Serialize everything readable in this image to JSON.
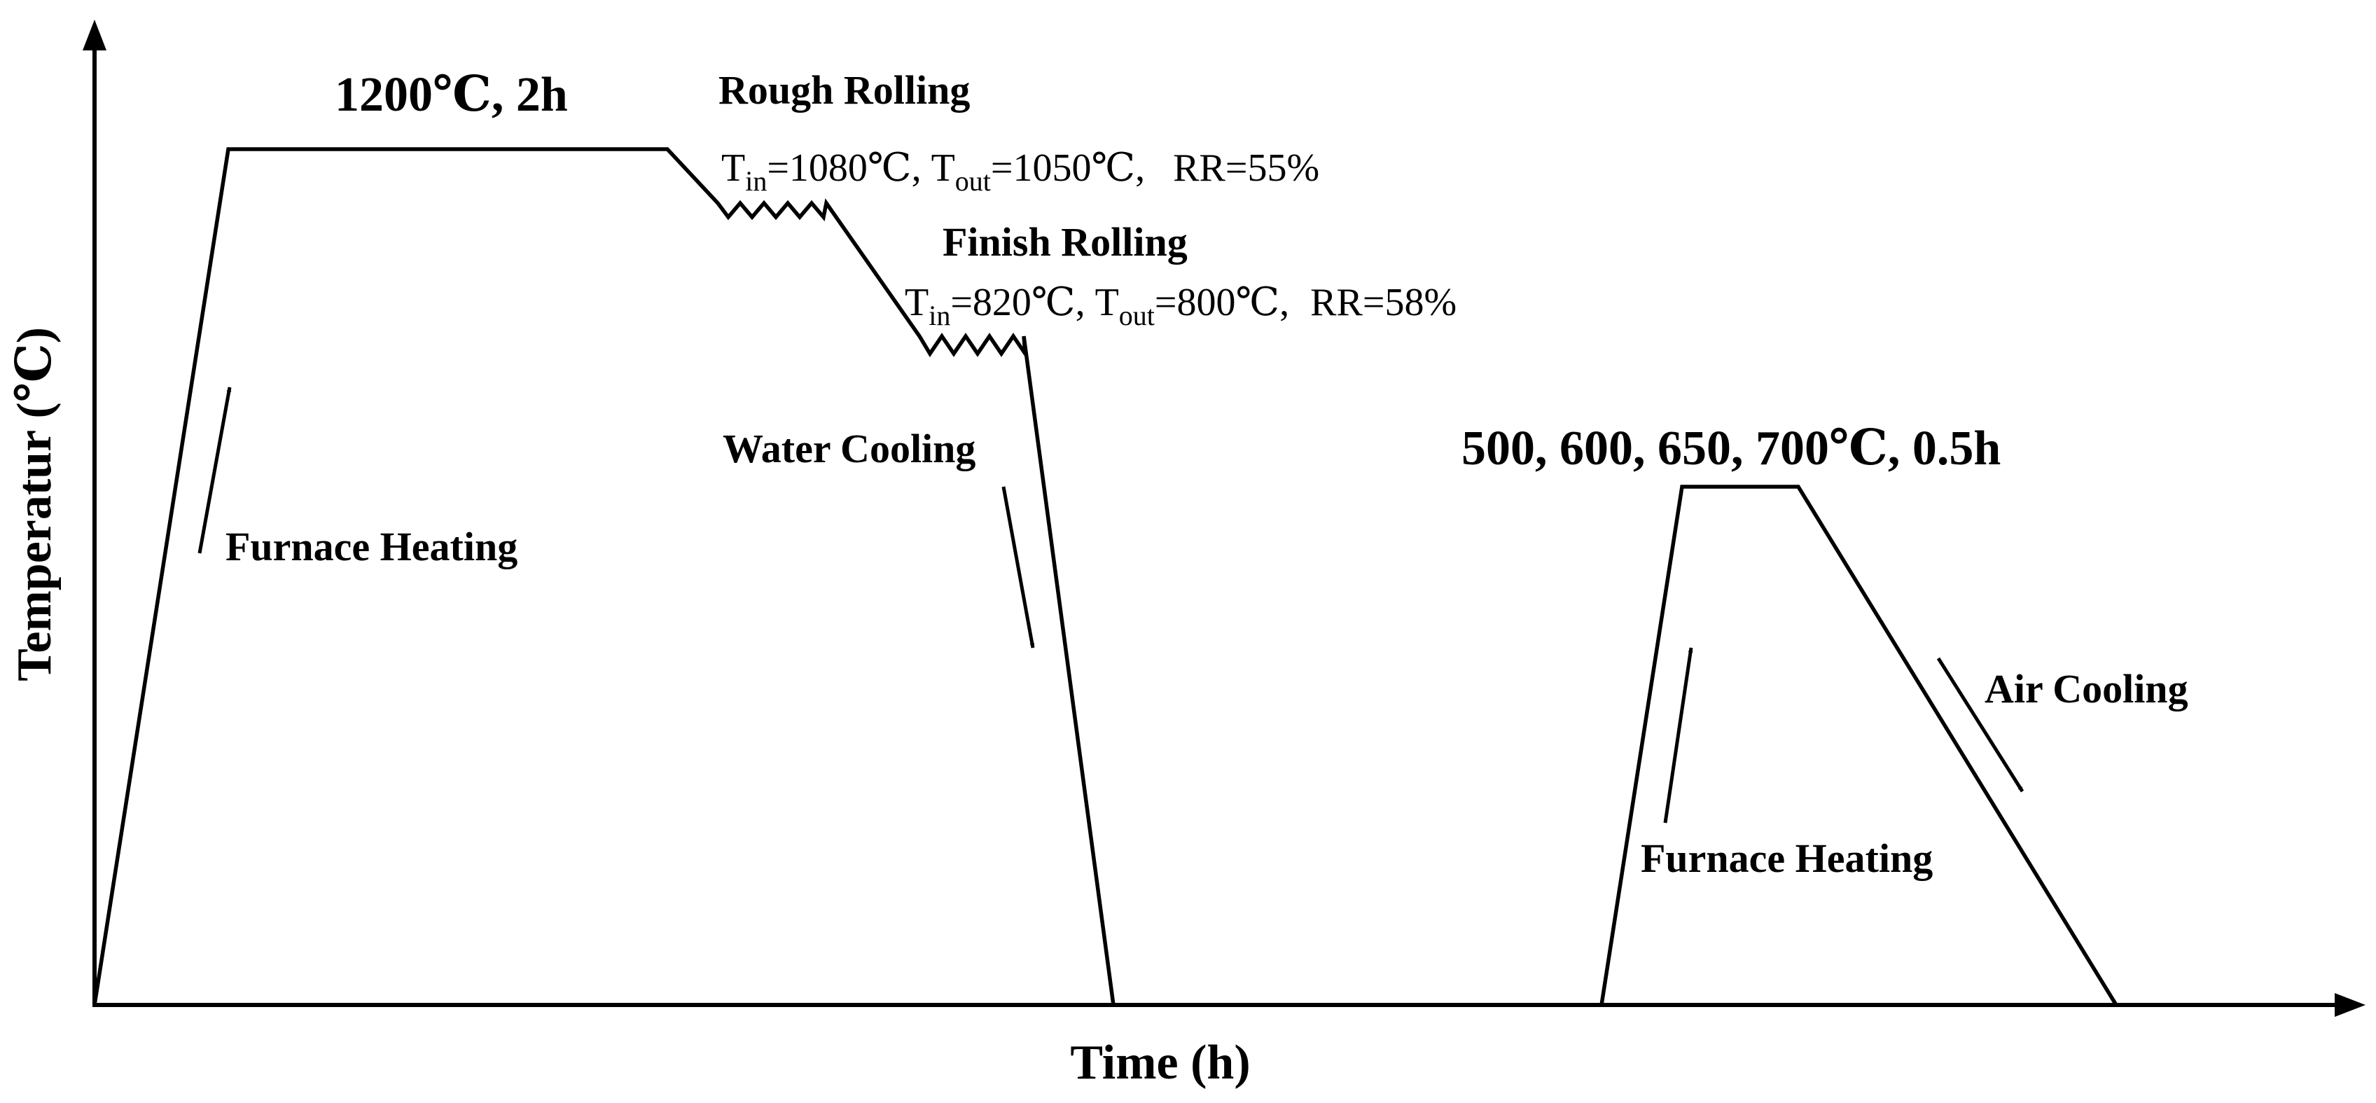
{
  "axes": {
    "x_label": "Time (h)",
    "y_label": "Temperatur (℃)"
  },
  "stages": {
    "soak_label": "1200℃, 2h",
    "rough_rolling": {
      "title": "Rough Rolling",
      "t_in_sym": "T",
      "t_in_sub": "in",
      "t_in_val": "=1080℃,",
      "t_out_sym": "T",
      "t_out_sub": "out",
      "t_out_val": "=1050℃,",
      "rr": "RR=55%"
    },
    "finish_rolling": {
      "title": "Finish Rolling",
      "t_in_sym": "T",
      "t_in_sub": "in",
      "t_in_val": "=820℃,",
      "t_out_sym": "T",
      "t_out_sub": "out",
      "t_out_val": "=800℃,",
      "rr": "RR=58%"
    },
    "water_cooling": "Water Cooling",
    "furnace_heating_1": "Furnace Heating",
    "temper_label": "500, 600, 650, 700℃, 0.5h",
    "furnace_heating_2": "Furnace Heating",
    "air_cooling": "Air Cooling"
  }
}
